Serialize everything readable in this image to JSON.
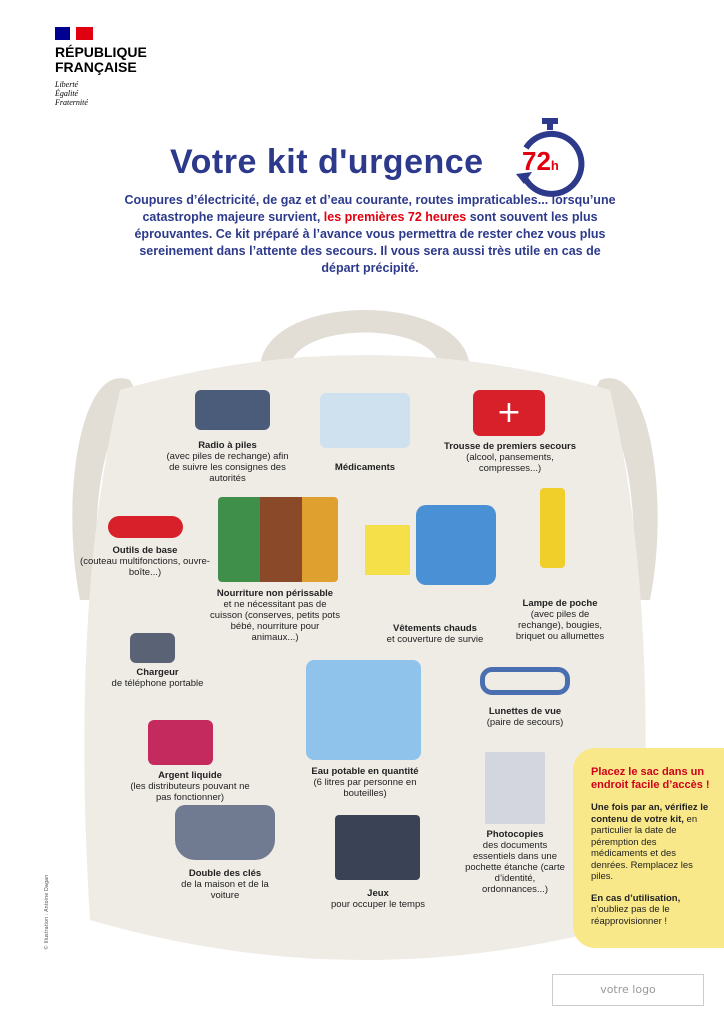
{
  "header": {
    "republique": "RÉPUBLIQUE",
    "francaise": "FRANÇAISE",
    "motto": [
      "Liberté",
      "Égalité",
      "Fraternité"
    ]
  },
  "title": "Votre kit d'urgence",
  "timer": {
    "value": "72",
    "unit": "h"
  },
  "intro": {
    "part1": "Coupures d’électricité, de gaz et d’eau courante, routes impraticables... lorsqu’une catastrophe majeure survient,",
    "highlight": "les premières 72 heures",
    "part2": "sont souvent les plus éprouvantes. Ce kit préparé à l’avance vous permettra de rester chez vous plus sereinement dans l’attente des secours. Il vous sera aussi très utile en cas de départ précipité."
  },
  "items": [
    {
      "title": "Radio à piles",
      "desc": "(avec piles de rechange) afin de suivre les consignes des autorités"
    },
    {
      "title": "Médicaments",
      "desc": ""
    },
    {
      "title": "Trousse de premiers secours",
      "desc": "(alcool, pansements, compresses...)"
    },
    {
      "title": "Outils de base",
      "desc": "(couteau multifonctions, ouvre-boîte...)"
    },
    {
      "title": "Nourriture non périssable",
      "desc": "et ne nécessitant pas de cuisson (conserves, petits pots bébé, nourriture pour animaux...)"
    },
    {
      "title": "Vêtements chauds",
      "desc": "et couverture de survie"
    },
    {
      "title": "Lampe de poche",
      "desc": "(avec piles de rechange), bougies, briquet ou allumettes"
    },
    {
      "title": "Chargeur",
      "desc": "de téléphone portable"
    },
    {
      "title": "Lunettes de vue",
      "desc": "(paire de secours)"
    },
    {
      "title": "Argent liquide",
      "desc": "(les distributeurs pouvant ne pas fonctionner)"
    },
    {
      "title": "Eau potable en quantité",
      "desc": "(6 litres par personne en bouteilles)"
    },
    {
      "title": "Photocopies",
      "desc": "des documents essentiels dans une pochette étanche (carte d’identité, ordonnances...)"
    },
    {
      "title": "Double des clés",
      "desc": "de la maison et de la voiture"
    },
    {
      "title": "Jeux",
      "desc": "pour occuper le temps"
    }
  ],
  "note": {
    "heading": "Placez le sac dans un endroit facile d’accès !",
    "p1_bold": "Une fois par an, vérifiez le contenu de votre kit,",
    "p1": "en particulier la date de péremption des médicaments et des denrées. Remplacez les piles.",
    "p2_bold": "En cas d’utilisation,",
    "p2": "n’oubliez pas de le réapprovisionner !"
  },
  "credit": "© Illustration : Antoine Dagan",
  "logo_placeholder": "votre logo",
  "colors": {
    "navy": "#2d3a8c",
    "red": "#e1000f",
    "bag": "#efece6",
    "note": "#f8e88a"
  }
}
